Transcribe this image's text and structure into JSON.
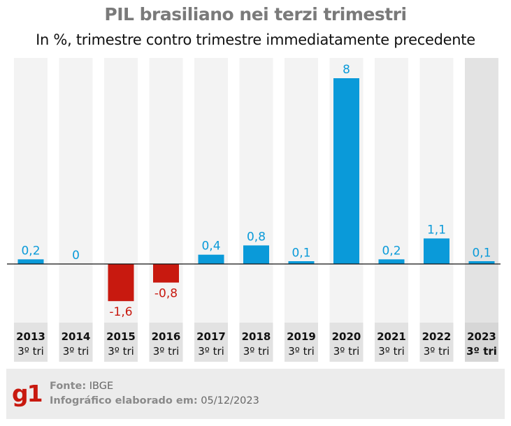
{
  "title": "PIL brasiliano nei terzi trimestri",
  "subtitle": "In %, trimestre contro trimestre immediatamente precedente",
  "chart_data": {
    "type": "bar",
    "categories": [
      "2013",
      "2014",
      "2015",
      "2016",
      "2017",
      "2018",
      "2019",
      "2020",
      "2021",
      "2022",
      "2023"
    ],
    "category_sublabel": "3º tri",
    "values": [
      0.2,
      0,
      -1.6,
      -0.8,
      0.4,
      0.8,
      0.1,
      8,
      0.2,
      1.1,
      0.1
    ],
    "value_labels": [
      "0,2",
      "0",
      "-1,6",
      "-0,8",
      "0,4",
      "0,8",
      "0,1",
      "8",
      "0,2",
      "1,1",
      "0,1"
    ],
    "highlighted_category": "2023",
    "ylim": [
      -2.2,
      8.6
    ],
    "colors": {
      "positive": "#0a9ad9",
      "negative": "#c8190f",
      "column_bg": "#f3f3f3",
      "highlight_bg": "#e3e3e3"
    },
    "xlabel": "",
    "ylabel": ""
  },
  "footer": {
    "logo_text": "g1",
    "source_label": "Fonte:",
    "source_value": "IBGE",
    "date_label": "Infográfico elaborado em:",
    "date_value": "05/12/2023"
  }
}
